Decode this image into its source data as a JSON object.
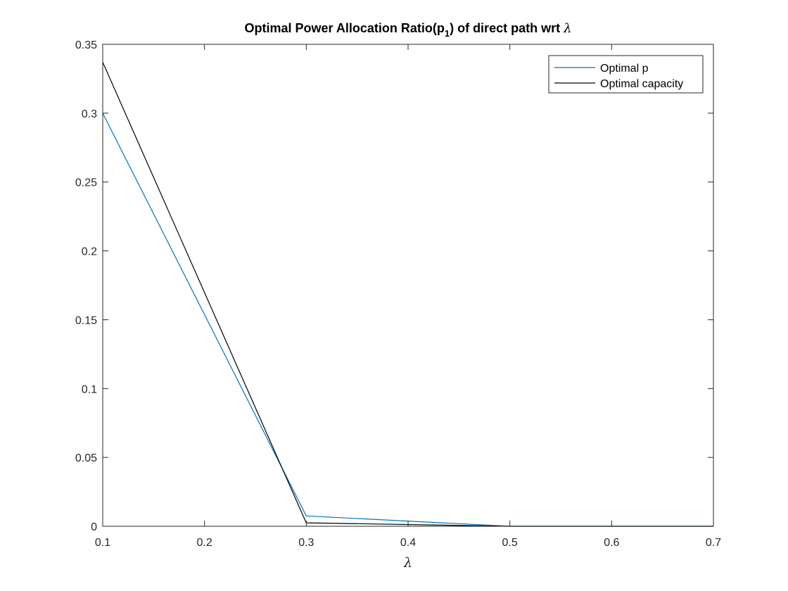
{
  "chart_data": {
    "type": "line",
    "title_prefix": "Optimal Power Allocation Ratio(p",
    "title_subscript": "1",
    "title_suffix": ") of direct path wrt ",
    "title_symbol": "λ",
    "xlabel": "λ",
    "ylabel": "",
    "xlim": [
      0.1,
      0.7
    ],
    "ylim": [
      0,
      0.35
    ],
    "xticks": [
      "0.1",
      "0.2",
      "0.3",
      "0.4",
      "0.5",
      "0.6",
      "0.7"
    ],
    "yticks": [
      "0",
      "0.05",
      "0.1",
      "0.15",
      "0.2",
      "0.25",
      "0.3",
      "0.35"
    ],
    "x": [
      0.1,
      0.3,
      0.5,
      0.7
    ],
    "grid": false,
    "legend_position": "top-right",
    "series": [
      {
        "name": "Optimal p",
        "color": "#0072BD",
        "values": [
          0.3,
          0.0075,
          0.0,
          0.0
        ]
      },
      {
        "name": "Optimal capacity",
        "color": "#000000",
        "values": [
          0.337,
          0.0025,
          0.0,
          0.0
        ]
      }
    ]
  }
}
